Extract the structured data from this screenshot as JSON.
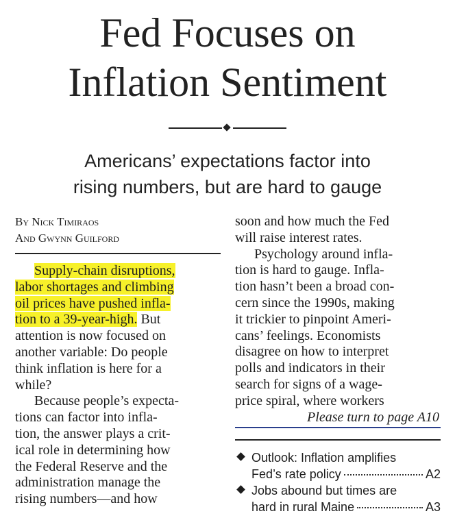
{
  "headline": {
    "line1": "Fed Focuses on",
    "line2": "Inflation Sentiment"
  },
  "deck": {
    "line1": "Americans’ expectations factor into",
    "line2": "rising numbers, but are hard to gauge"
  },
  "byline": {
    "line1": "By Nick Timiraos",
    "line2": "And Gwynn Guilford"
  },
  "article": {
    "highlight_lines": [
      "Supply-chain disruptions,",
      "labor shortages and climbing",
      "oil prices have pushed infla-",
      "tion to a 39-year-high."
    ],
    "p1_rest_first": " But",
    "left_lines": [
      "attention is now focused on",
      "another variable: Do people",
      "think inflation is here for a",
      "while?",
      "Because people’s expecta-",
      "tions can factor into infla-",
      "tion, the answer plays a crit-",
      "ical role in determining how",
      "the Federal Reserve and the",
      "administration manage the",
      "rising numbers—and how"
    ],
    "right_lines": [
      "soon and how much the Fed",
      "will raise interest rates.",
      "Psychology around infla-",
      "tion is hard to gauge. Infla-",
      "tion hasn’t been a broad con-",
      "cern since the 1990s, making",
      "it trickier to pinpoint Ameri-",
      "cans’ feelings. Economists",
      "disagree on how to interpret",
      "polls and indicators in their",
      "search for signs of a wage-",
      "price spiral, where workers"
    ],
    "jump": "Please turn to page A10"
  },
  "index": {
    "items": [
      {
        "line1": "Outlook: Inflation amplifies",
        "line2": "Fed’s rate policy",
        "page": "A2"
      },
      {
        "line1": "Jobs abound but times are",
        "line2": "hard in rural Maine",
        "page": "A3"
      }
    ]
  }
}
